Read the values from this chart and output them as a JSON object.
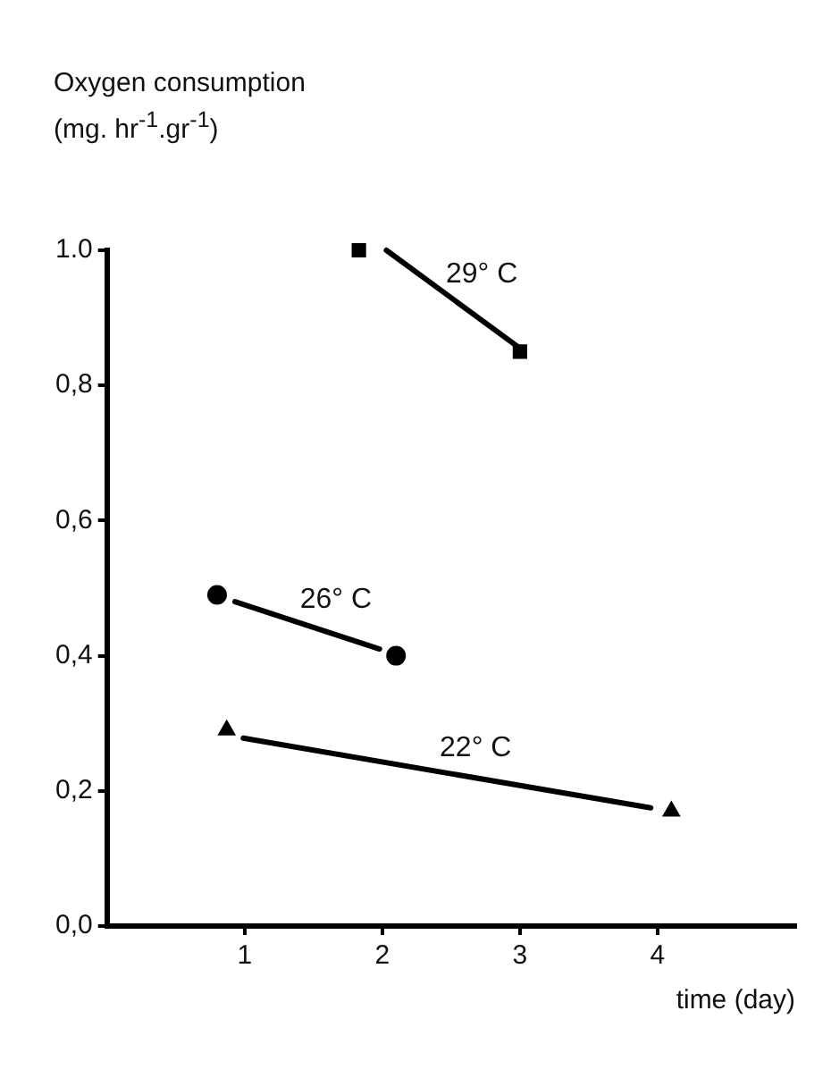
{
  "chart_data": {
    "type": "scatter",
    "ylabel": "Oxygen consumption (mg. hr$^{-1}$.gr$^{-1}$)",
    "xlabel": "time (day)",
    "xlim": [
      0,
      5
    ],
    "xticks": [
      1,
      2,
      3,
      4
    ],
    "ylim": [
      0,
      1.0
    ],
    "yticks": [
      {
        "value": 0,
        "label": "0,0"
      },
      {
        "value": 0.2,
        "label": "0,2"
      },
      {
        "value": 0.4,
        "label": "0,4"
      },
      {
        "value": 0.6,
        "label": "0,6"
      },
      {
        "value": 0.8,
        "label": "0,8"
      },
      {
        "value": 1.0,
        "label": "1.0"
      }
    ],
    "legend": false,
    "series": [
      {
        "color": "#000000",
        "marker": "square",
        "x": [
          1.83,
          3.0
        ],
        "values": [
          1.0,
          0.85
        ]
      },
      {
        "type": "line",
        "name": "29° C",
        "color": "#000000",
        "marker": "none",
        "x": [
          2.03,
          3.0
        ],
        "values": [
          1.0,
          0.855
        ]
      },
      {
        "color": "#000000",
        "marker": "circle",
        "x": [
          0.8,
          2.1
        ],
        "values": [
          0.49,
          0.4
        ]
      },
      {
        "type": "line",
        "name": "26° C",
        "color": "#000000",
        "marker": "none",
        "x": [
          0.93,
          1.98
        ],
        "values": [
          0.48,
          0.41
        ]
      },
      {
        "color": "#000000",
        "marker": "triangle",
        "x": [
          0.87,
          4.1
        ],
        "values": [
          0.29,
          0.17
        ]
      },
      {
        "type": "line",
        "name": "22° C",
        "color": "#000000",
        "marker": "none",
        "x": [
          0.99,
          3.95
        ],
        "values": [
          0.278,
          0.175
        ]
      }
    ]
  }
}
